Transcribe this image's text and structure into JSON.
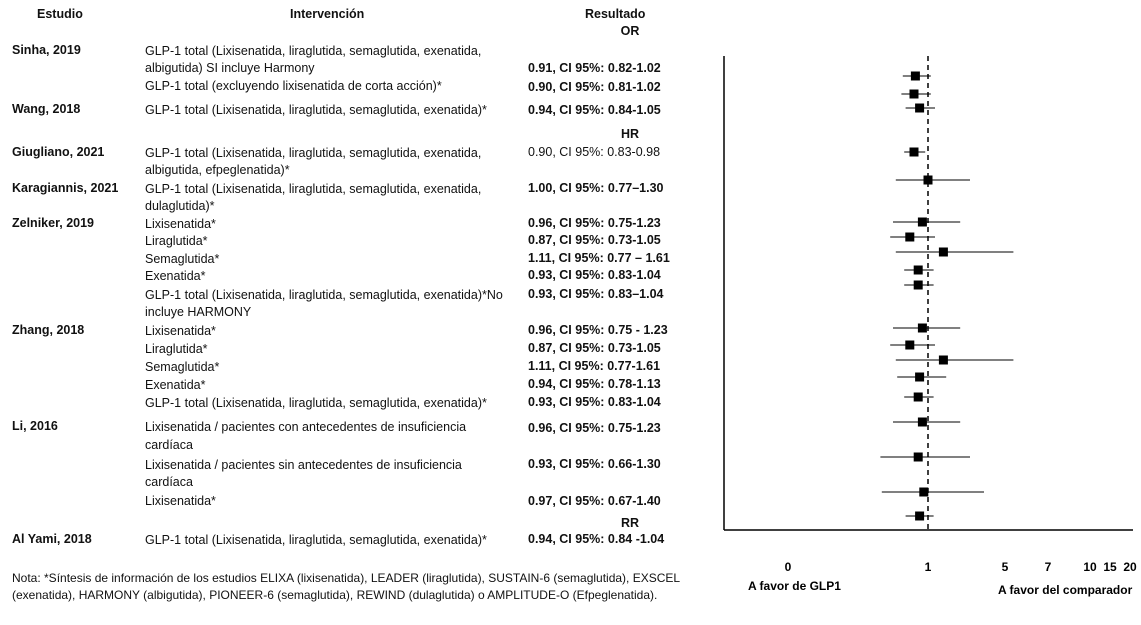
{
  "headers": {
    "study": "Estudio",
    "intervention": "Intervención",
    "result": "Resultado"
  },
  "measures": {
    "or": "OR",
    "hr": "HR",
    "rr": "RR"
  },
  "rows": [
    {
      "study": "Sinha, 2019",
      "intervention": "GLP-1 total (Lixisenatida, liraglutida, semaglutida, exenatida,",
      "result": "",
      "bold": false
    },
    {
      "study": "",
      "intervention": "albigutida) SI incluye Harmony",
      "result": "0.91, CI 95%: 0.82-1.02",
      "bold": true
    },
    {
      "study": "",
      "intervention": "GLP-1 total (excluyendo lixisenatida de corta acción)*",
      "result": "0.90, CI 95%: 0.81-1.02",
      "bold": true
    },
    {
      "study": "Wang, 2018",
      "intervention": "GLP-1 total (Lixisenatida, liraglutida, semaglutida, exenatida)*",
      "result": "0.94, CI 95%: 0.84-1.05",
      "bold": true
    },
    {
      "study": "Giugliano, 2021",
      "intervention": "GLP-1 total (Lixisenatida, liraglutida, semaglutida, exenatida,",
      "result": "0.90, CI 95%: 0.83-0.98",
      "bold": false
    },
    {
      "study": "",
      "intervention": "albigutida, efpeglenatida)*",
      "result": "",
      "bold": false
    },
    {
      "study": "Karagiannis, 2021",
      "intervention": "GLP-1 total (Lixisenatida, liraglutida, semaglutida, exenatida,",
      "result": "1.00, CI 95%: 0.77–1.30",
      "bold": true
    },
    {
      "study": "",
      "intervention": "dulaglutida)*",
      "result": "",
      "bold": false
    },
    {
      "study": "Zelniker, 2019",
      "intervention": "Lixisenatida*",
      "result": "0.96, CI 95%: 0.75-1.23",
      "bold": true
    },
    {
      "study": "",
      "intervention": "Liraglutida*",
      "result": "0.87, CI 95%: 0.73-1.05",
      "bold": true
    },
    {
      "study": "",
      "intervention": "Semaglutida*",
      "result": "1.11, CI 95%: 0.77 – 1.61",
      "bold": true
    },
    {
      "study": "",
      "intervention": "Exenatida*",
      "result": "0.93, CI 95%: 0.83-1.04",
      "bold": true
    },
    {
      "study": "",
      "intervention": "GLP-1 total (Lixisenatida, liraglutida, semaglutida, exenatida)*No",
      "result": "0.93, CI 95%: 0.83–1.04",
      "bold": true
    },
    {
      "study": "",
      "intervention": "incluye HARMONY",
      "result": "",
      "bold": false
    },
    {
      "study": "Zhang, 2018",
      "intervention": "Lixisenatida*",
      "result": "0.96, CI 95%: 0.75 - 1.23",
      "bold": true
    },
    {
      "study": "",
      "intervention": "Liraglutida*",
      "result": "0.87, CI 95%: 0.73-1.05",
      "bold": true
    },
    {
      "study": "",
      "intervention": "Semaglutida*",
      "result": "1.11, CI 95%: 0.77-1.61",
      "bold": true
    },
    {
      "study": "",
      "intervention": "Exenatida*",
      "result": "0.94, CI 95%: 0.78-1.13",
      "bold": true
    },
    {
      "study": "",
      "intervention": "GLP-1 total (Lixisenatida, liraglutida, semaglutida, exenatida)*",
      "result": "0.93, CI 95%: 0.83-1.04",
      "bold": true
    },
    {
      "study": "Li, 2016",
      "intervention": "Lixisenatida / pacientes con antecedentes de insuficiencia",
      "result": "0.96, CI 95%: 0.75-1.23",
      "bold": true
    },
    {
      "study": "",
      "intervention": "cardíaca",
      "result": "",
      "bold": false
    },
    {
      "study": "",
      "intervention": "Lixisenatida / pacientes sin antecedentes de insuficiencia",
      "result": "0.93, CI 95%: 0.66-1.30",
      "bold": true
    },
    {
      "study": "",
      "intervention": "cardíaca",
      "result": "",
      "bold": false
    },
    {
      "study": "",
      "intervention": "Lixisenatida*",
      "result": "0.97, CI 95%: 0.67-1.40",
      "bold": true
    },
    {
      "study": "Al Yami, 2018",
      "intervention": "GLP-1 total (Lixisenatida, liraglutida, semaglutida, exenatida)*",
      "result": "0.94, CI 95%: 0.84 -1.04",
      "bold": true
    }
  ],
  "note": "Nota: *Síntesis de información de los estudios ELIXA (lixisenatida), LEADER (liraglutida), SUSTAIN-6 (semaglutida), EXSCEL (exenatida), HARMONY (albigutida), PIONEER-6 (semaglutida), REWIND (dulaglutida) o AMPLITUDE-O (Efpeglenatida).",
  "chart_data": {
    "type": "scatter",
    "subtype": "forest-plot",
    "x_tick_labels": [
      "0",
      "1",
      "5",
      "7",
      "10",
      "15",
      "20"
    ],
    "reference_line": 1,
    "reference_line_style": "dashed",
    "left_label": "A favor de GLP1",
    "right_label": "A favor del comparador",
    "marker": "square",
    "estimates": [
      {
        "estimate": 0.91,
        "lower": 0.82,
        "upper": 1.02
      },
      {
        "estimate": 0.9,
        "lower": 0.81,
        "upper": 1.02
      },
      {
        "estimate": 0.94,
        "lower": 0.84,
        "upper": 1.05
      },
      {
        "estimate": 0.9,
        "lower": 0.83,
        "upper": 0.98
      },
      {
        "estimate": 1.0,
        "lower": 0.77,
        "upper": 1.3
      },
      {
        "estimate": 0.96,
        "lower": 0.75,
        "upper": 1.23
      },
      {
        "estimate": 0.87,
        "lower": 0.73,
        "upper": 1.05
      },
      {
        "estimate": 1.11,
        "lower": 0.77,
        "upper": 1.61
      },
      {
        "estimate": 0.93,
        "lower": 0.83,
        "upper": 1.04
      },
      {
        "estimate": 0.93,
        "lower": 0.83,
        "upper": 1.04
      },
      {
        "estimate": 0.96,
        "lower": 0.75,
        "upper": 1.23
      },
      {
        "estimate": 0.87,
        "lower": 0.73,
        "upper": 1.05
      },
      {
        "estimate": 1.11,
        "lower": 0.77,
        "upper": 1.61
      },
      {
        "estimate": 0.94,
        "lower": 0.78,
        "upper": 1.13
      },
      {
        "estimate": 0.93,
        "lower": 0.83,
        "upper": 1.04
      },
      {
        "estimate": 0.96,
        "lower": 0.75,
        "upper": 1.23
      },
      {
        "estimate": 0.93,
        "lower": 0.66,
        "upper": 1.3
      },
      {
        "estimate": 0.97,
        "lower": 0.67,
        "upper": 1.4
      },
      {
        "estimate": 0.94,
        "lower": 0.84,
        "upper": 1.04
      }
    ]
  }
}
